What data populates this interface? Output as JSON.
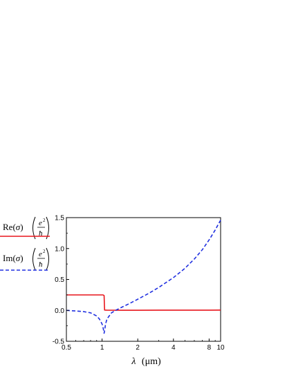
{
  "chart_data": {
    "type": "line",
    "title": "",
    "xscale": "log",
    "xlim": [
      0.5,
      10
    ],
    "ylim": [
      -0.5,
      1.5
    ],
    "xlabel": {
      "symbol": "λ",
      "unit": "(μm)"
    },
    "ylabel": "",
    "grid": false,
    "legend_placement": "left",
    "x_ticks": [
      {
        "value": 0.5,
        "label": "0.5"
      },
      {
        "value": 1,
        "label": "1"
      },
      {
        "value": 2,
        "label": "2"
      },
      {
        "value": 4,
        "label": "4"
      },
      {
        "value": 8,
        "label": "8"
      },
      {
        "value": 10,
        "label": "10"
      }
    ],
    "y_ticks": [
      {
        "value": -0.5,
        "label": "-0.5"
      },
      {
        "value": 0.0,
        "label": "0.0"
      },
      {
        "value": 0.5,
        "label": "0.5"
      },
      {
        "value": 1.0,
        "label": "1.0"
      },
      {
        "value": 1.5,
        "label": "1.5"
      }
    ],
    "series": [
      {
        "name": "Re(σ) (e²/ħ)",
        "legend_parts": {
          "prefix": "Re(",
          "symbol": "σ",
          "suffix": ")",
          "numerator": "e",
          "exponent": "2",
          "denominator": "ħ"
        },
        "color": "#e8141b",
        "style": "solid",
        "x": [
          0.5,
          0.6,
          0.7,
          0.8,
          0.9,
          0.95,
          1.0,
          1.02,
          1.04,
          1.045,
          1.05,
          1.1,
          1.5,
          2,
          3,
          4,
          6,
          8,
          10
        ],
        "y": [
          0.25,
          0.25,
          0.25,
          0.25,
          0.25,
          0.25,
          0.25,
          0.25,
          0.24,
          0.12,
          0.005,
          0.003,
          0.002,
          0.002,
          0.003,
          0.003,
          0.004,
          0.004,
          0.005
        ]
      },
      {
        "name": "Im(σ) (e²/ħ)",
        "legend_parts": {
          "prefix": "Im(",
          "symbol": "σ",
          "suffix": ")",
          "numerator": "e",
          "exponent": "2",
          "denominator": "ħ"
        },
        "color": "#1f2fe0",
        "style": "dashed",
        "x": [
          0.5,
          0.6,
          0.7,
          0.8,
          0.9,
          0.95,
          1.0,
          1.02,
          1.04,
          1.05,
          1.07,
          1.1,
          1.2,
          1.3,
          1.5,
          1.7,
          2,
          2.5,
          3,
          4,
          5,
          6,
          7,
          8,
          9,
          10
        ],
        "y": [
          0.0,
          -0.01,
          -0.02,
          -0.04,
          -0.09,
          -0.14,
          -0.22,
          -0.28,
          -0.37,
          -0.33,
          -0.22,
          -0.14,
          -0.04,
          0.0,
          0.06,
          0.11,
          0.18,
          0.28,
          0.37,
          0.53,
          0.68,
          0.83,
          0.98,
          1.14,
          1.3,
          1.46
        ]
      }
    ]
  }
}
